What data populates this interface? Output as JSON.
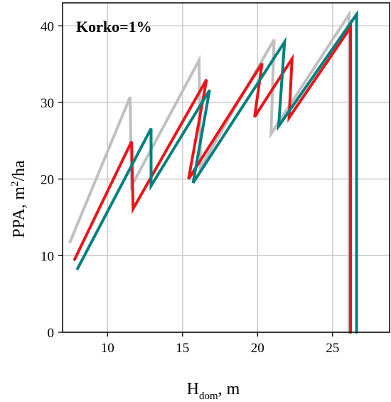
{
  "chart_data": {
    "type": "line",
    "title": "",
    "annotation": "Korko=1%",
    "xlabel": {
      "main": "H",
      "sub": "dom",
      "suffix": ", m"
    },
    "ylabel": {
      "main": "PPA, m",
      "sup": "2",
      "suffix": "/ha"
    },
    "xlim": [
      7.0,
      28.8
    ],
    "ylim": [
      0,
      43.0
    ],
    "xticks": [
      10,
      15,
      20,
      25
    ],
    "yticks": [
      0,
      10,
      20,
      30,
      40
    ],
    "grid": true,
    "legend": "none",
    "series": [
      {
        "color": "#c0c0c0",
        "x": [
          7.5,
          11.5,
          11.6,
          16.1,
          16.2,
          21.1,
          20.9,
          26.1,
          26.1
        ],
        "y": [
          11.8,
          30.7,
          19.1,
          35.5,
          21.5,
          38.2,
          25.9,
          41.5,
          0
        ]
      },
      {
        "color": "#e8161b",
        "x": [
          7.8,
          11.6,
          11.7,
          16.6,
          15.4,
          20.3,
          19.8,
          22.3,
          22.1,
          26.2,
          26.2
        ],
        "y": [
          9.5,
          24.9,
          16.1,
          33.0,
          20.0,
          35.1,
          28.1,
          35.7,
          28.0,
          39.8,
          0
        ]
      },
      {
        "color": "#008080",
        "x": [
          8.0,
          12.9,
          12.9,
          16.8,
          15.7,
          21.8,
          21.4,
          26.6,
          26.6
        ],
        "y": [
          8.3,
          26.6,
          19.1,
          31.6,
          19.5,
          37.9,
          26.9,
          41.5,
          0
        ]
      }
    ]
  }
}
